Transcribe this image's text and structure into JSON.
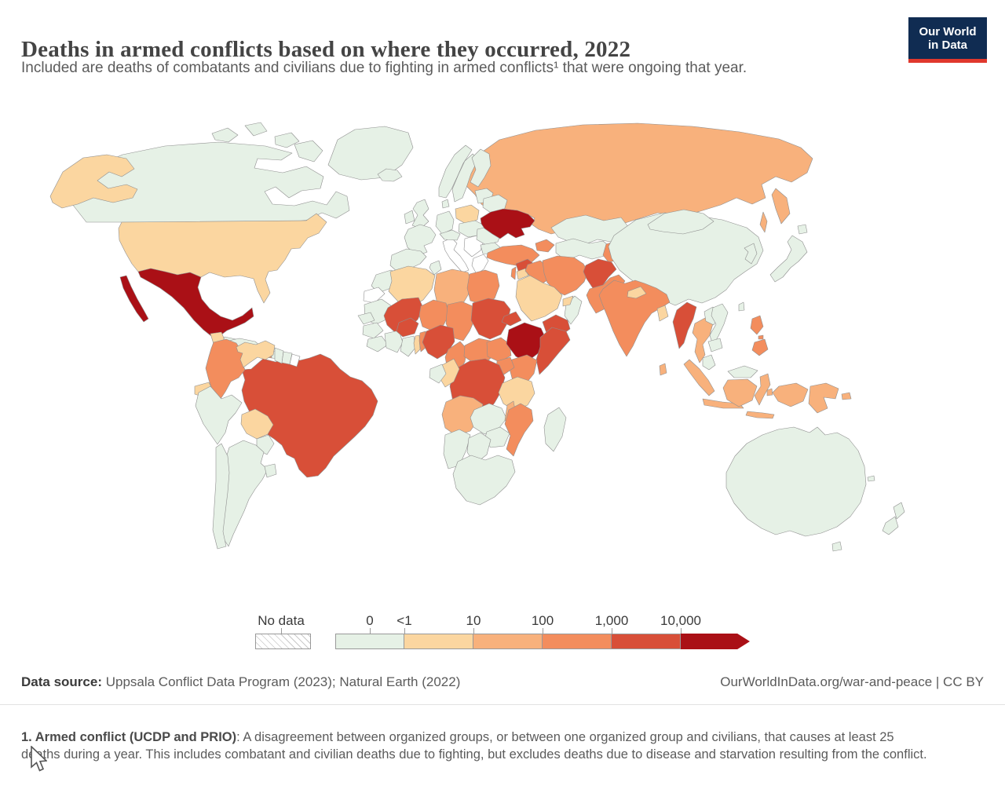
{
  "header": {
    "title": "Deaths in armed conflicts based on where they occurred, 2022",
    "subtitle": "Included are deaths of combatants and civilians due to fighting in armed conflicts¹ that were ongoing that year."
  },
  "logo": {
    "line1": "Our World",
    "line2": "in Data",
    "bg_color": "#102c52",
    "stripe_color": "#e0382d"
  },
  "legend": {
    "no_data_label": "No data"
  },
  "footer": {
    "source_label": "Data source:",
    "source_value": " Uppsala Conflict Data Program (2023); Natural Earth (2022)",
    "link": "OurWorldInData.org/war-and-peace | CC BY"
  },
  "note": {
    "bold": "1. Armed conflict (UCDP and PRIO)",
    "text": ": A disagreement between organized groups, or between one organized group and civilians, that causes at least 25 deaths during a year. This includes combatant and civilian deaths due to fighting, but excludes deaths due to disease and starvation resulting from the conflict."
  },
  "chart_data": {
    "type": "choropleth_map",
    "title": "Deaths in armed conflicts based on where they occurred",
    "year": 2022,
    "unit": "deaths",
    "scale": {
      "buckets": [
        "0",
        "<1 to 10",
        "10 to 100",
        "100 to 1,000",
        "1,000 to 10,000",
        "10,000+"
      ],
      "colors": [
        "#e6f1e6",
        "#fbd6a0",
        "#f8b17c",
        "#f38d5d",
        "#d84f38",
        "#aa1016"
      ],
      "tick_labels": [
        "0",
        "<1",
        "10",
        "100",
        "1,000",
        "10,000"
      ],
      "no_data_label": "No data",
      "no_data_color": "#ffffff"
    },
    "values": {
      "greenland": "0",
      "canada": "0",
      "usa": "<1 to 10",
      "mexico": "10,000+",
      "guatemala": "<1 to 10",
      "honduras-nicaragua": "0",
      "costa-rica-panama": "0",
      "cuba": "0",
      "haiti": "100 to 1,000",
      "dominican-republic": "0",
      "colombia": "100 to 1,000",
      "venezuela": "<1 to 10",
      "guyana": "0",
      "suriname": "0",
      "french-guiana": "No data",
      "ecuador": "<1 to 10",
      "peru": "0",
      "brazil": "1,000 to 10,000",
      "bolivia": "<1 to 10",
      "paraguay": "0",
      "chile": "0",
      "argentina": "0",
      "uruguay": "0",
      "iceland": "0",
      "uk": "0",
      "ireland": "0",
      "norway": "0",
      "sweden": "0",
      "finland": "0",
      "baltics": "0",
      "denmark": "0",
      "germany": "0",
      "france": "0",
      "spain": "0",
      "italy": "No data",
      "switzerland-austria": "0",
      "poland": "<1 to 10",
      "czech-hungary": "0",
      "balkans": "No data",
      "greece": "No data",
      "romania": "0",
      "bulgaria": "0",
      "belarus": "0",
      "ukraine": "10,000+",
      "russia": "10 to 100",
      "turkey": "100 to 1,000",
      "caucasus": "100 to 1,000",
      "kazakhstan": "0",
      "turkmenistan-uzbekistan": "0",
      "kyrgyzstan-tajikistan": "100 to 1,000",
      "syria": "1,000 to 10,000",
      "israel-palestine": "100 to 1,000",
      "jordan": "<1 to 10",
      "iraq": "100 to 1,000",
      "iran": "100 to 1,000",
      "afghanistan": "1,000 to 10,000",
      "pakistan": "100 to 1,000",
      "saudi-arabia": "<1 to 10",
      "yemen": "1,000 to 10,000",
      "oman": "0",
      "uae": "<1 to 10",
      "morocco": "0",
      "western-sahara": "No data",
      "algeria": "<1 to 10",
      "tunisia": "0",
      "libya": "10 to 100",
      "egypt": "100 to 1,000",
      "mauritania": "0",
      "mali": "1,000 to 10,000",
      "niger": "100 to 1,000",
      "chad": "100 to 1,000",
      "sudan": "1,000 to 10,000",
      "eritrea": "1,000 to 10,000",
      "senegal": "0",
      "guinea": "0",
      "sierra-leone-liberia": "0",
      "ivory-coast": "0",
      "burkina-faso": "1,000 to 10,000",
      "ghana": "0",
      "togo": "<1 to 10",
      "benin": "100 to 1,000",
      "nigeria": "1,000 to 10,000",
      "cameroon": "100 to 1,000",
      "central-african-republic": "100 to 1,000",
      "south-sudan": "100 to 1,000",
      "ethiopia": "10,000+",
      "somalia": "1,000 to 10,000",
      "kenya": "100 to 1,000",
      "uganda": "100 to 1,000",
      "drc": "1,000 to 10,000",
      "congo": "<1 to 10",
      "gabon": "0",
      "tanzania": "<1 to 10",
      "angola": "10 to 100",
      "zambia": "0",
      "malawi": "10 to 100",
      "mozambique": "100 to 1,000",
      "zimbabwe": "0",
      "namibia": "0",
      "botswana": "0",
      "south-africa": "0",
      "madagascar": "0",
      "china": "0",
      "mongolia": "0",
      "korea": "0",
      "japan": "0",
      "taiwan": "0",
      "india": "100 to 1,000",
      "nepal": "<1 to 10",
      "bangladesh": "<1 to 10",
      "sri-lanka": "10 to 100",
      "myanmar": "1,000 to 10,000",
      "thailand": "10 to 100",
      "laos": "0",
      "vietnam": "0",
      "cambodia": "0",
      "malaysia": "0",
      "indonesia": "10 to 100",
      "philippines": "100 to 1,000",
      "papua-new-guinea": "10 to 100",
      "australia": "0",
      "new-zealand": "0",
      "new-caledonia": "0"
    }
  }
}
